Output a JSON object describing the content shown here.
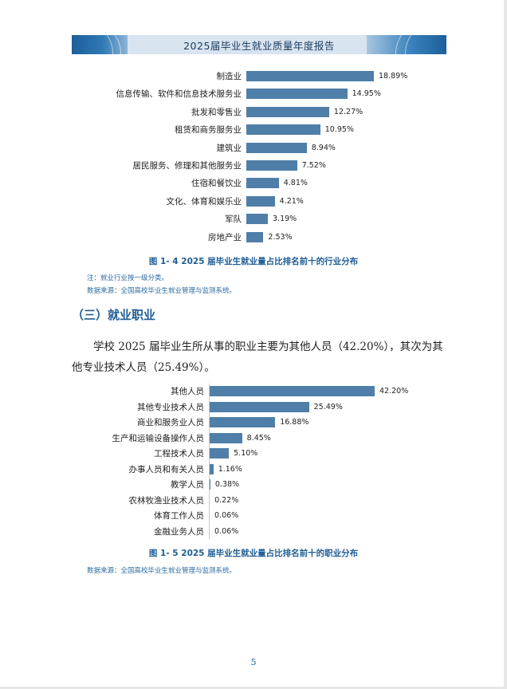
{
  "header": {
    "title": "2025届毕业生就业质量年度报告"
  },
  "industry_chart": {
    "caption": "图 1- 4 2025 届毕业生就业量占比排名前十的行业分布",
    "note": "注：就业行业按一级分类。",
    "source": "数据来源：全国高校毕业生就业管理与监测系统。"
  },
  "section": {
    "heading": "（三）就业职业",
    "paragraph": "学校 2025 届毕业生所从事的职业主要为其他人员（42.20%），其次为其他专业技术人员（25.49%）。"
  },
  "occupation_chart": {
    "caption": "图 1- 5 2025 届毕业生就业量占比排名前十的职业分布",
    "source": "数据来源：全国高校毕业生就业管理与监测系统。"
  },
  "page_number": "5",
  "colors": {
    "bar": "#4f7fa8",
    "accent": "#1f5d95"
  },
  "chart_data": [
    {
      "type": "bar",
      "orientation": "horizontal",
      "categories": [
        "制造业",
        "信息传输、软件和信息技术服务业",
        "批发和零售业",
        "租赁和商务服务业",
        "建筑业",
        "居民服务、修理和其他服务业",
        "住宿和餐饮业",
        "文化、体育和娱乐业",
        "军队",
        "房地产业"
      ],
      "values": [
        18.89,
        14.95,
        12.27,
        10.95,
        8.94,
        7.52,
        4.81,
        4.21,
        3.19,
        2.53
      ],
      "value_labels": [
        "18.89%",
        "14.95%",
        "12.27%",
        "10.95%",
        "8.94%",
        "7.52%",
        "4.81%",
        "4.21%",
        "3.19%",
        "2.53%"
      ],
      "title": "图 1- 4 2025 届毕业生就业量占比排名前十的行业分布",
      "unit": "%",
      "grid": false
    },
    {
      "type": "bar",
      "orientation": "horizontal",
      "categories": [
        "其他人员",
        "其他专业技术人员",
        "商业和服务业人员",
        "生产和运输设备操作人员",
        "工程技术人员",
        "办事人员和有关人员",
        "教学人员",
        "农林牧渔业技术人员",
        "体育工作人员",
        "金融业务人员"
      ],
      "values": [
        42.2,
        25.49,
        16.88,
        8.45,
        5.1,
        1.16,
        0.38,
        0.22,
        0.06,
        0.06
      ],
      "value_labels": [
        "42.20%",
        "25.49%",
        "16.88%",
        "8.45%",
        "5.10%",
        "1.16%",
        "0.38%",
        "0.22%",
        "0.06%",
        "0.06%"
      ],
      "title": "图 1- 5 2025 届毕业生就业量占比排名前十的职业分布",
      "unit": "%",
      "grid": false
    }
  ]
}
